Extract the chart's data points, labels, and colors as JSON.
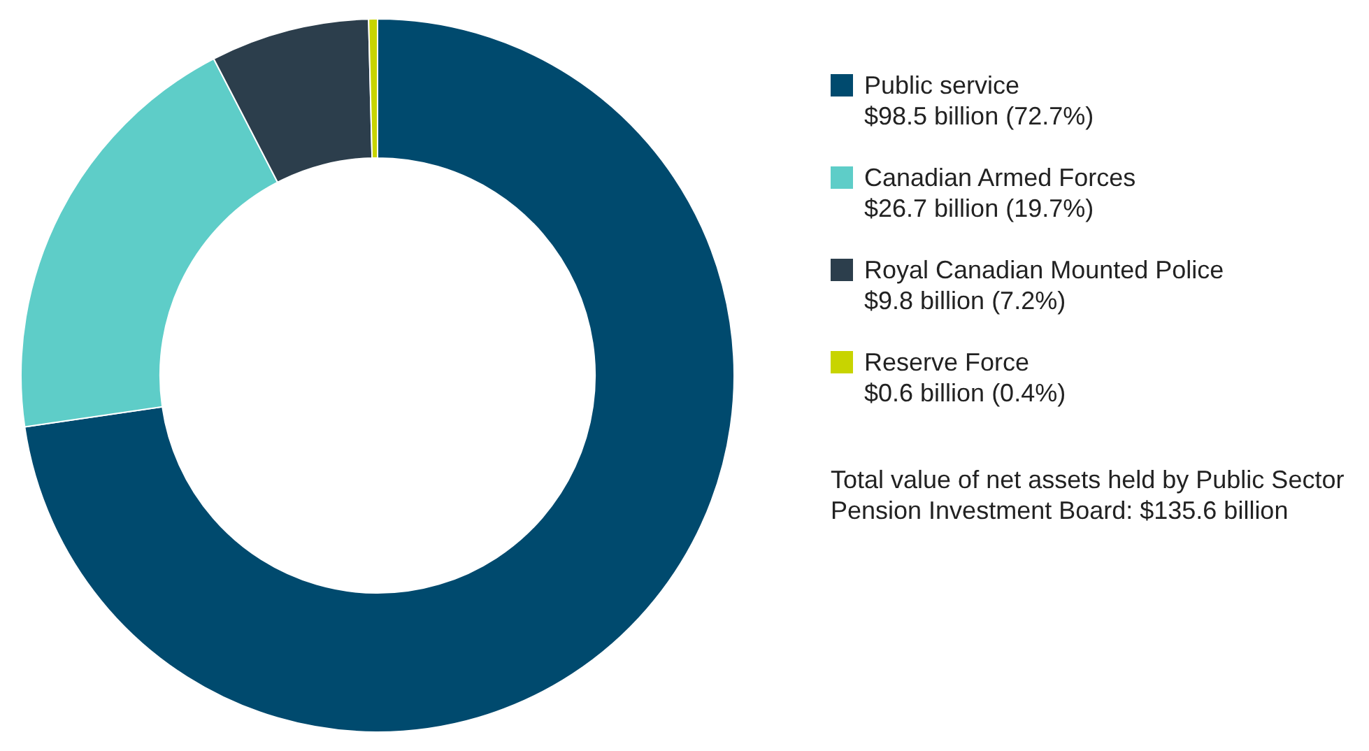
{
  "chart_data": {
    "type": "donut",
    "categories": [
      "Public service",
      "Canadian Armed Forces",
      "Royal Canadian Mounted Police",
      "Reserve Force"
    ],
    "values": [
      72.7,
      19.7,
      7.2,
      0.4
    ],
    "value_labels": [
      "$98.5 billion (72.7%)",
      "$26.7 billion (19.7%)",
      "$9.8 billion (7.2%)",
      "$0.6 billion (0.4%)"
    ],
    "colors": [
      "#004a6e",
      "#5ecdc8",
      "#2c3e4c",
      "#c8d400"
    ],
    "legend": "right",
    "annotations": [
      "Total value of net assets held by Public Sector Pension Investment Board: $135.6 billion"
    ]
  }
}
